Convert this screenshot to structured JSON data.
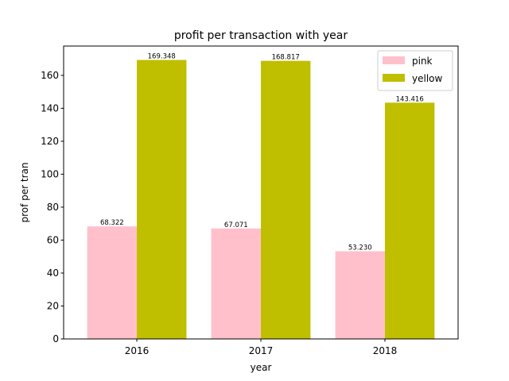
{
  "chart_data": {
    "type": "bar",
    "title": "profit per transaction with year",
    "xlabel": "year",
    "ylabel": "prof per tran",
    "categories": [
      "2016",
      "2017",
      "2018"
    ],
    "series": [
      {
        "name": "pink",
        "color": "#ffc0cb",
        "values": [
          68.322,
          67.071,
          53.23
        ],
        "labels": [
          "68.322",
          "67.071",
          "53.230"
        ]
      },
      {
        "name": "yellow",
        "color": "#bfbf00",
        "values": [
          169.348,
          168.817,
          143.416
        ],
        "labels": [
          "169.348",
          "168.817",
          "143.416"
        ]
      }
    ],
    "ylim": [
      0,
      177.8
    ],
    "yticks": [
      0,
      20,
      40,
      60,
      80,
      100,
      120,
      140,
      160
    ],
    "grid": false,
    "legend_position": "top-right"
  }
}
